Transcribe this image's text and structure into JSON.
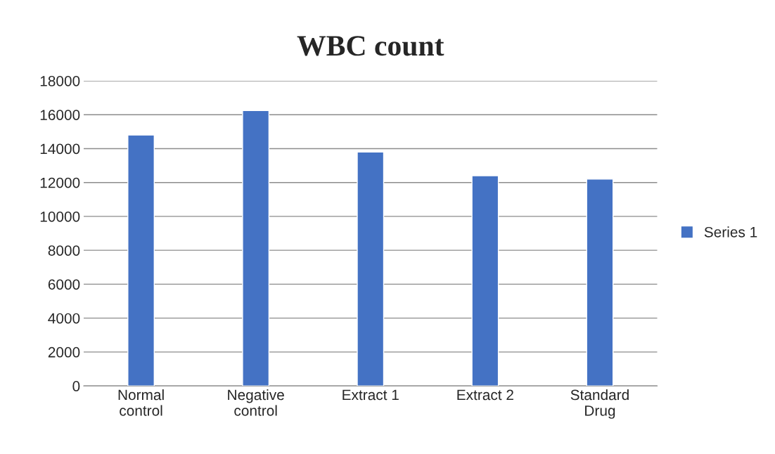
{
  "chart_data": {
    "type": "bar",
    "title": "WBC count",
    "categories": [
      "Normal\ncontrol",
      "Negative\ncontrol",
      "Extract 1",
      "Extract 2",
      "Standard\nDrug"
    ],
    "series": [
      {
        "name": "Series 1",
        "color": "#4472c4",
        "values": [
          14800,
          16250,
          13800,
          12400,
          12200
        ]
      }
    ],
    "ylim": [
      0,
      18000
    ],
    "yticks": [
      0,
      2000,
      4000,
      6000,
      8000,
      10000,
      12000,
      14000,
      16000,
      18000
    ],
    "grid": "y",
    "legend": "right"
  }
}
